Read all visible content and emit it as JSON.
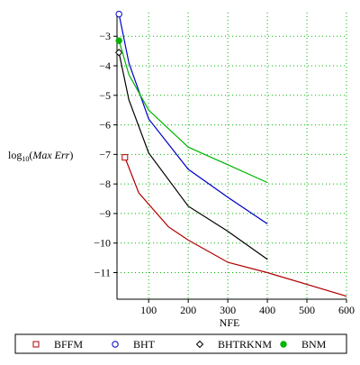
{
  "chart_data": {
    "type": "line",
    "xlabel": "NFE",
    "ylabel": {
      "prefix": "log",
      "subscript": "10",
      "quantity": "Max Err"
    },
    "xlim": [
      20,
      600
    ],
    "ylim": [
      -11.9,
      -2.2
    ],
    "xticks": [
      100,
      200,
      300,
      400,
      500,
      600
    ],
    "yticks": [
      -3,
      -4,
      -5,
      -6,
      -7,
      -8,
      -9,
      -10,
      -11
    ],
    "grid": true,
    "legend_position": "bottom",
    "series": [
      {
        "name": "BFFM",
        "color": "#b00000",
        "marker": "open-square",
        "marker_points": [
          [
            40,
            -7.1
          ]
        ],
        "points": [
          [
            40,
            -7.1
          ],
          [
            75,
            -8.3
          ],
          [
            150,
            -9.45
          ],
          [
            200,
            -9.9
          ],
          [
            300,
            -10.65
          ],
          [
            400,
            -11.0
          ],
          [
            600,
            -11.8
          ]
        ]
      },
      {
        "name": "BHT",
        "color": "#0000c8",
        "marker": "open-circle",
        "marker_points": [
          [
            25,
            -2.25
          ]
        ],
        "points": [
          [
            25,
            -2.25
          ],
          [
            50,
            -3.9
          ],
          [
            100,
            -5.8
          ],
          [
            200,
            -7.5
          ],
          [
            300,
            -8.45
          ],
          [
            400,
            -9.35
          ]
        ]
      },
      {
        "name": "BHTRKNM",
        "color": "#000000",
        "marker": "open-diamond",
        "marker_points": [
          [
            25,
            -3.55
          ]
        ],
        "points": [
          [
            25,
            -3.55
          ],
          [
            50,
            -5.15
          ],
          [
            100,
            -6.95
          ],
          [
            200,
            -8.75
          ],
          [
            300,
            -9.6
          ],
          [
            400,
            -10.55
          ]
        ]
      },
      {
        "name": "BNM",
        "color": "#00b400",
        "marker": "filled-circle",
        "marker_points": [
          [
            25,
            -3.15
          ]
        ],
        "points": [
          [
            25,
            -3.15
          ],
          [
            50,
            -4.3
          ],
          [
            100,
            -5.5
          ],
          [
            200,
            -6.75
          ],
          [
            300,
            -7.35
          ],
          [
            400,
            -7.95
          ]
        ]
      }
    ]
  }
}
